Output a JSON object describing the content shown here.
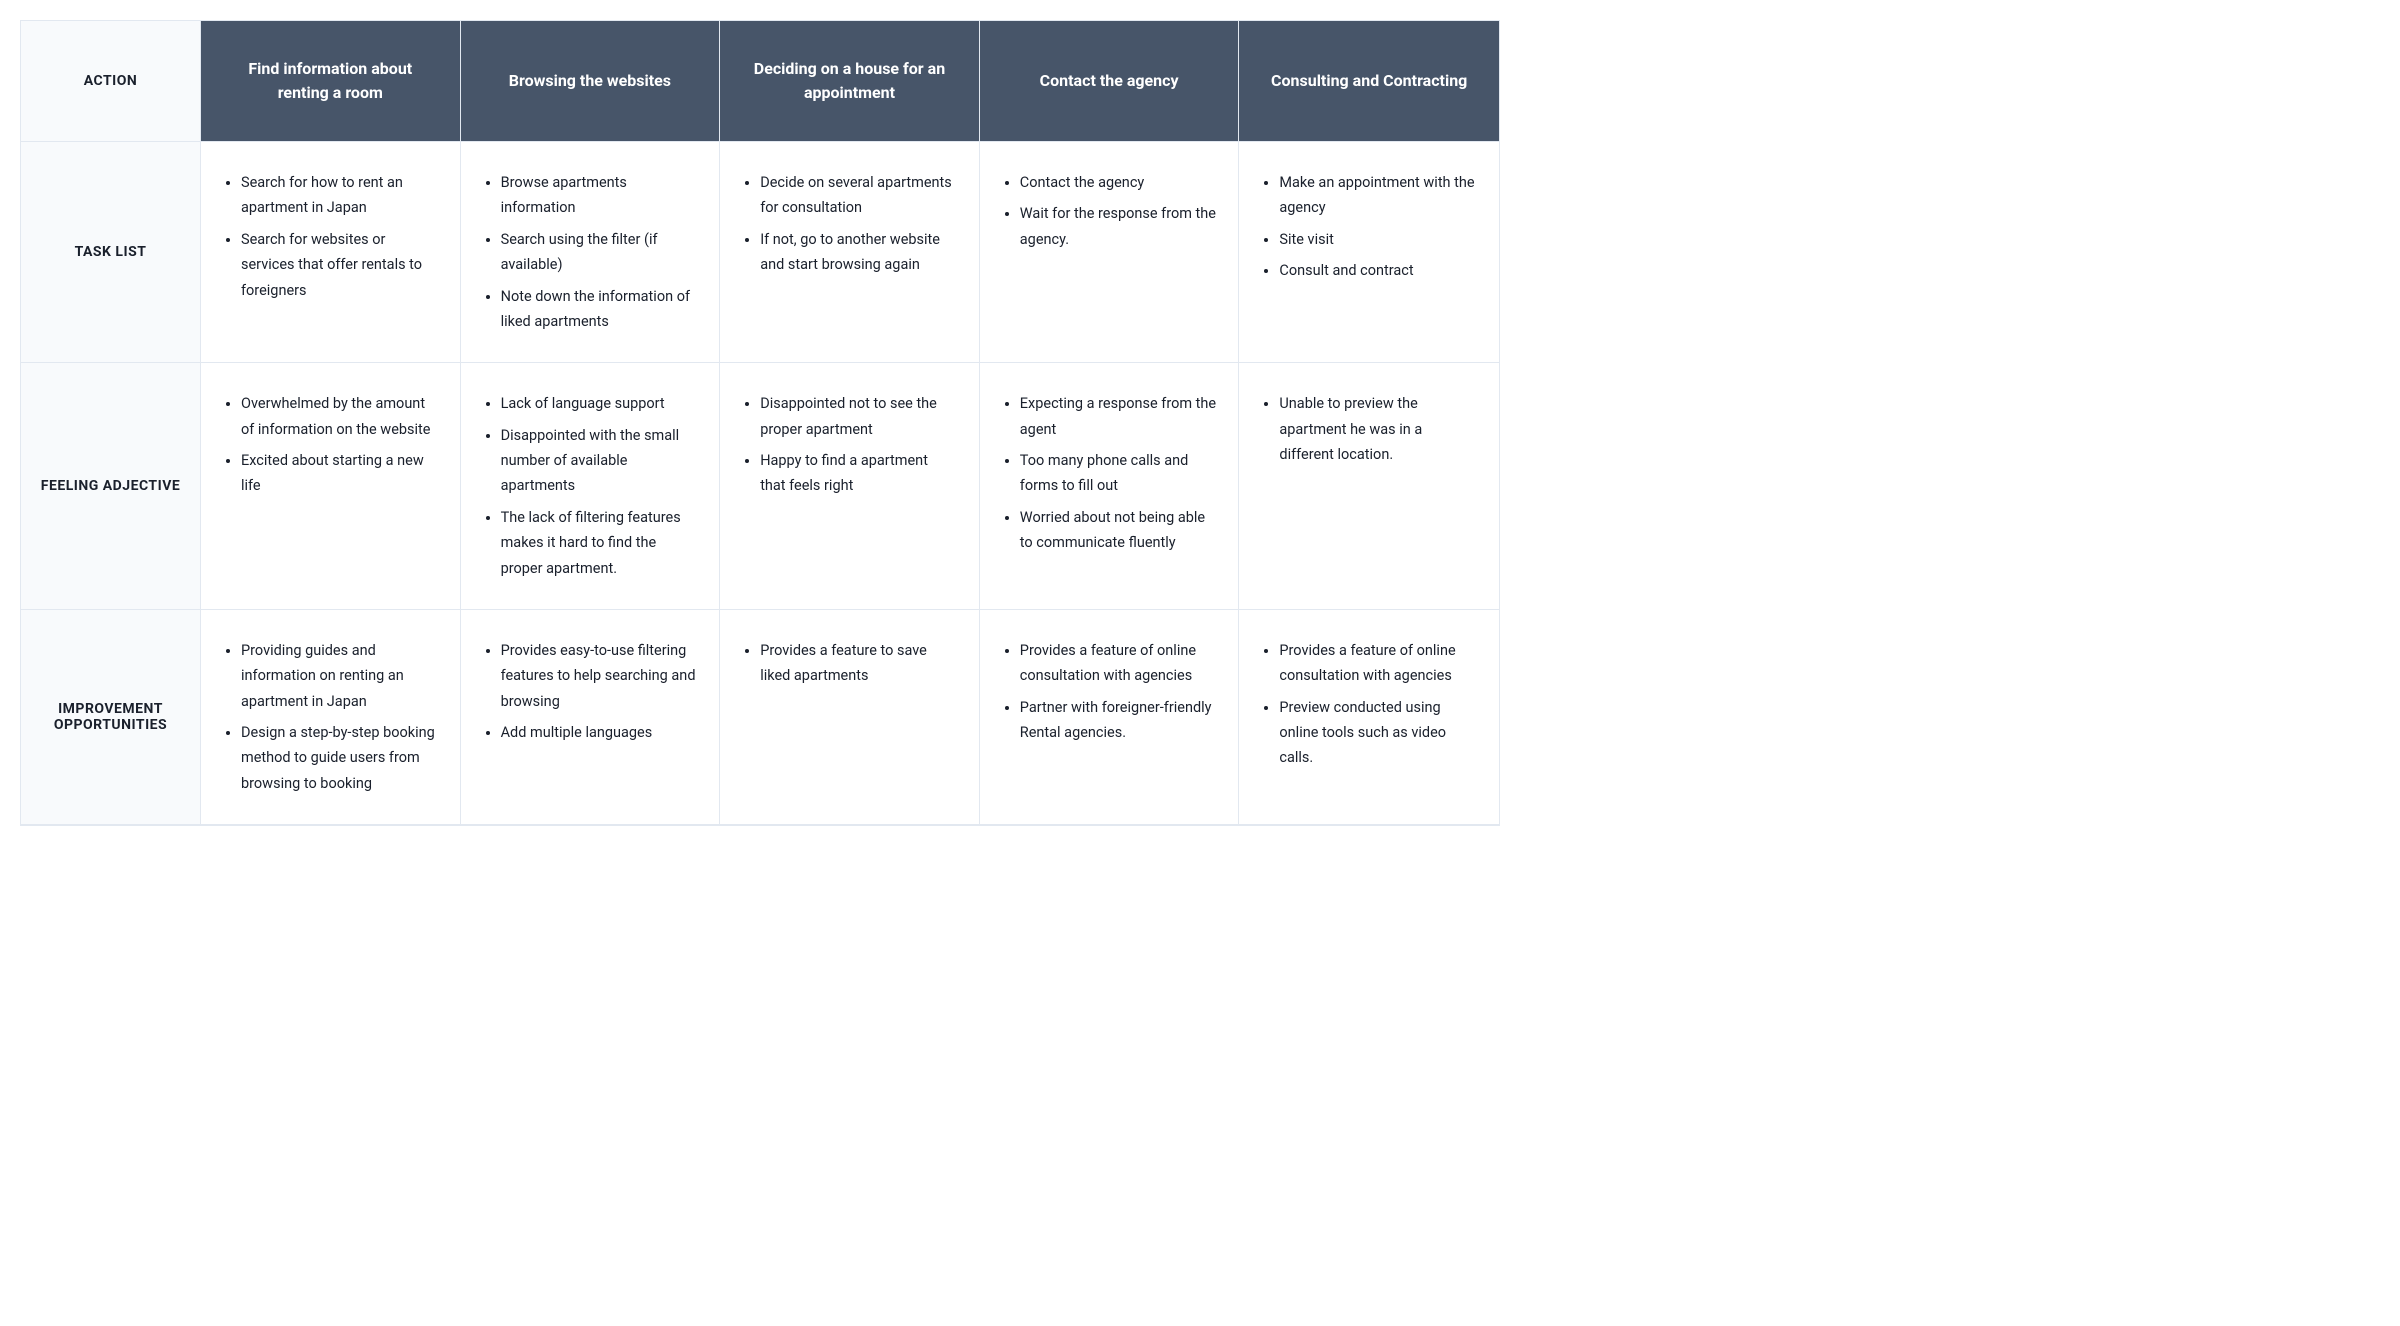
{
  "table": {
    "type": "journey-map-table",
    "colors": {
      "header_bg": "#475569",
      "header_text": "#ffffff",
      "row_header_bg": "#f8fafc",
      "row_header_text": "#1a202c",
      "cell_bg": "#ffffff",
      "cell_text": "#1a202c",
      "border": "#e2e8f0"
    },
    "row_labels": [
      "ACTION",
      "TASK LIST",
      "FEELING ADJECTIVE",
      "IMPROVEMENT OPPORTUNITIES"
    ],
    "columns": [
      {
        "title": "Find information about renting a room",
        "task_list": [
          "Search for how to rent an apartment in Japan",
          "Search for websites or services that offer rentals to foreigners"
        ],
        "feeling": [
          "Overwhelmed by the amount of information on the website",
          "Excited about starting a new life"
        ],
        "improvement": [
          "Providing guides and information on renting an apartment in Japan",
          "Design a step-by-step booking method to guide users from browsing to booking"
        ]
      },
      {
        "title": "Browsing the websites",
        "task_list": [
          "Browse apartments information",
          "Search using the filter (if available)",
          "Note down the information of liked apartments"
        ],
        "feeling": [
          "Lack of language support",
          "Disappointed with the small number of available apartments",
          "The lack of filtering features makes it hard to find the proper apartment."
        ],
        "improvement": [
          "Provides easy-to-use filtering features to help searching and browsing",
          "Add multiple languages"
        ]
      },
      {
        "title": "Deciding on a house for an appointment",
        "task_list": [
          "Decide on several apartments for consultation",
          "If not, go to another website and start browsing again"
        ],
        "feeling": [
          "Disappointed not to see the proper apartment",
          "Happy to find a apartment that feels right"
        ],
        "improvement": [
          "Provides a feature to save liked apartments"
        ]
      },
      {
        "title": "Contact the agency",
        "task_list": [
          "Contact the agency",
          "Wait for the response from the agency."
        ],
        "feeling": [
          "Expecting a response from the agent",
          "Too many phone calls and forms to fill out",
          "Worried about not being able to communicate fluently"
        ],
        "improvement": [
          "Provides a feature of online consultation with agencies",
          "Partner with foreigner-friendly Rental agencies."
        ]
      },
      {
        "title": "Consulting and Contracting",
        "task_list": [
          "Make an appointment with the agency",
          "Site visit",
          "Consult and contract"
        ],
        "feeling": [
          "Unable to preview the apartment he was in a different location."
        ],
        "improvement": [
          "Provides a feature of online consultation with agencies",
          "Preview conducted using online tools such as video calls."
        ]
      }
    ]
  }
}
